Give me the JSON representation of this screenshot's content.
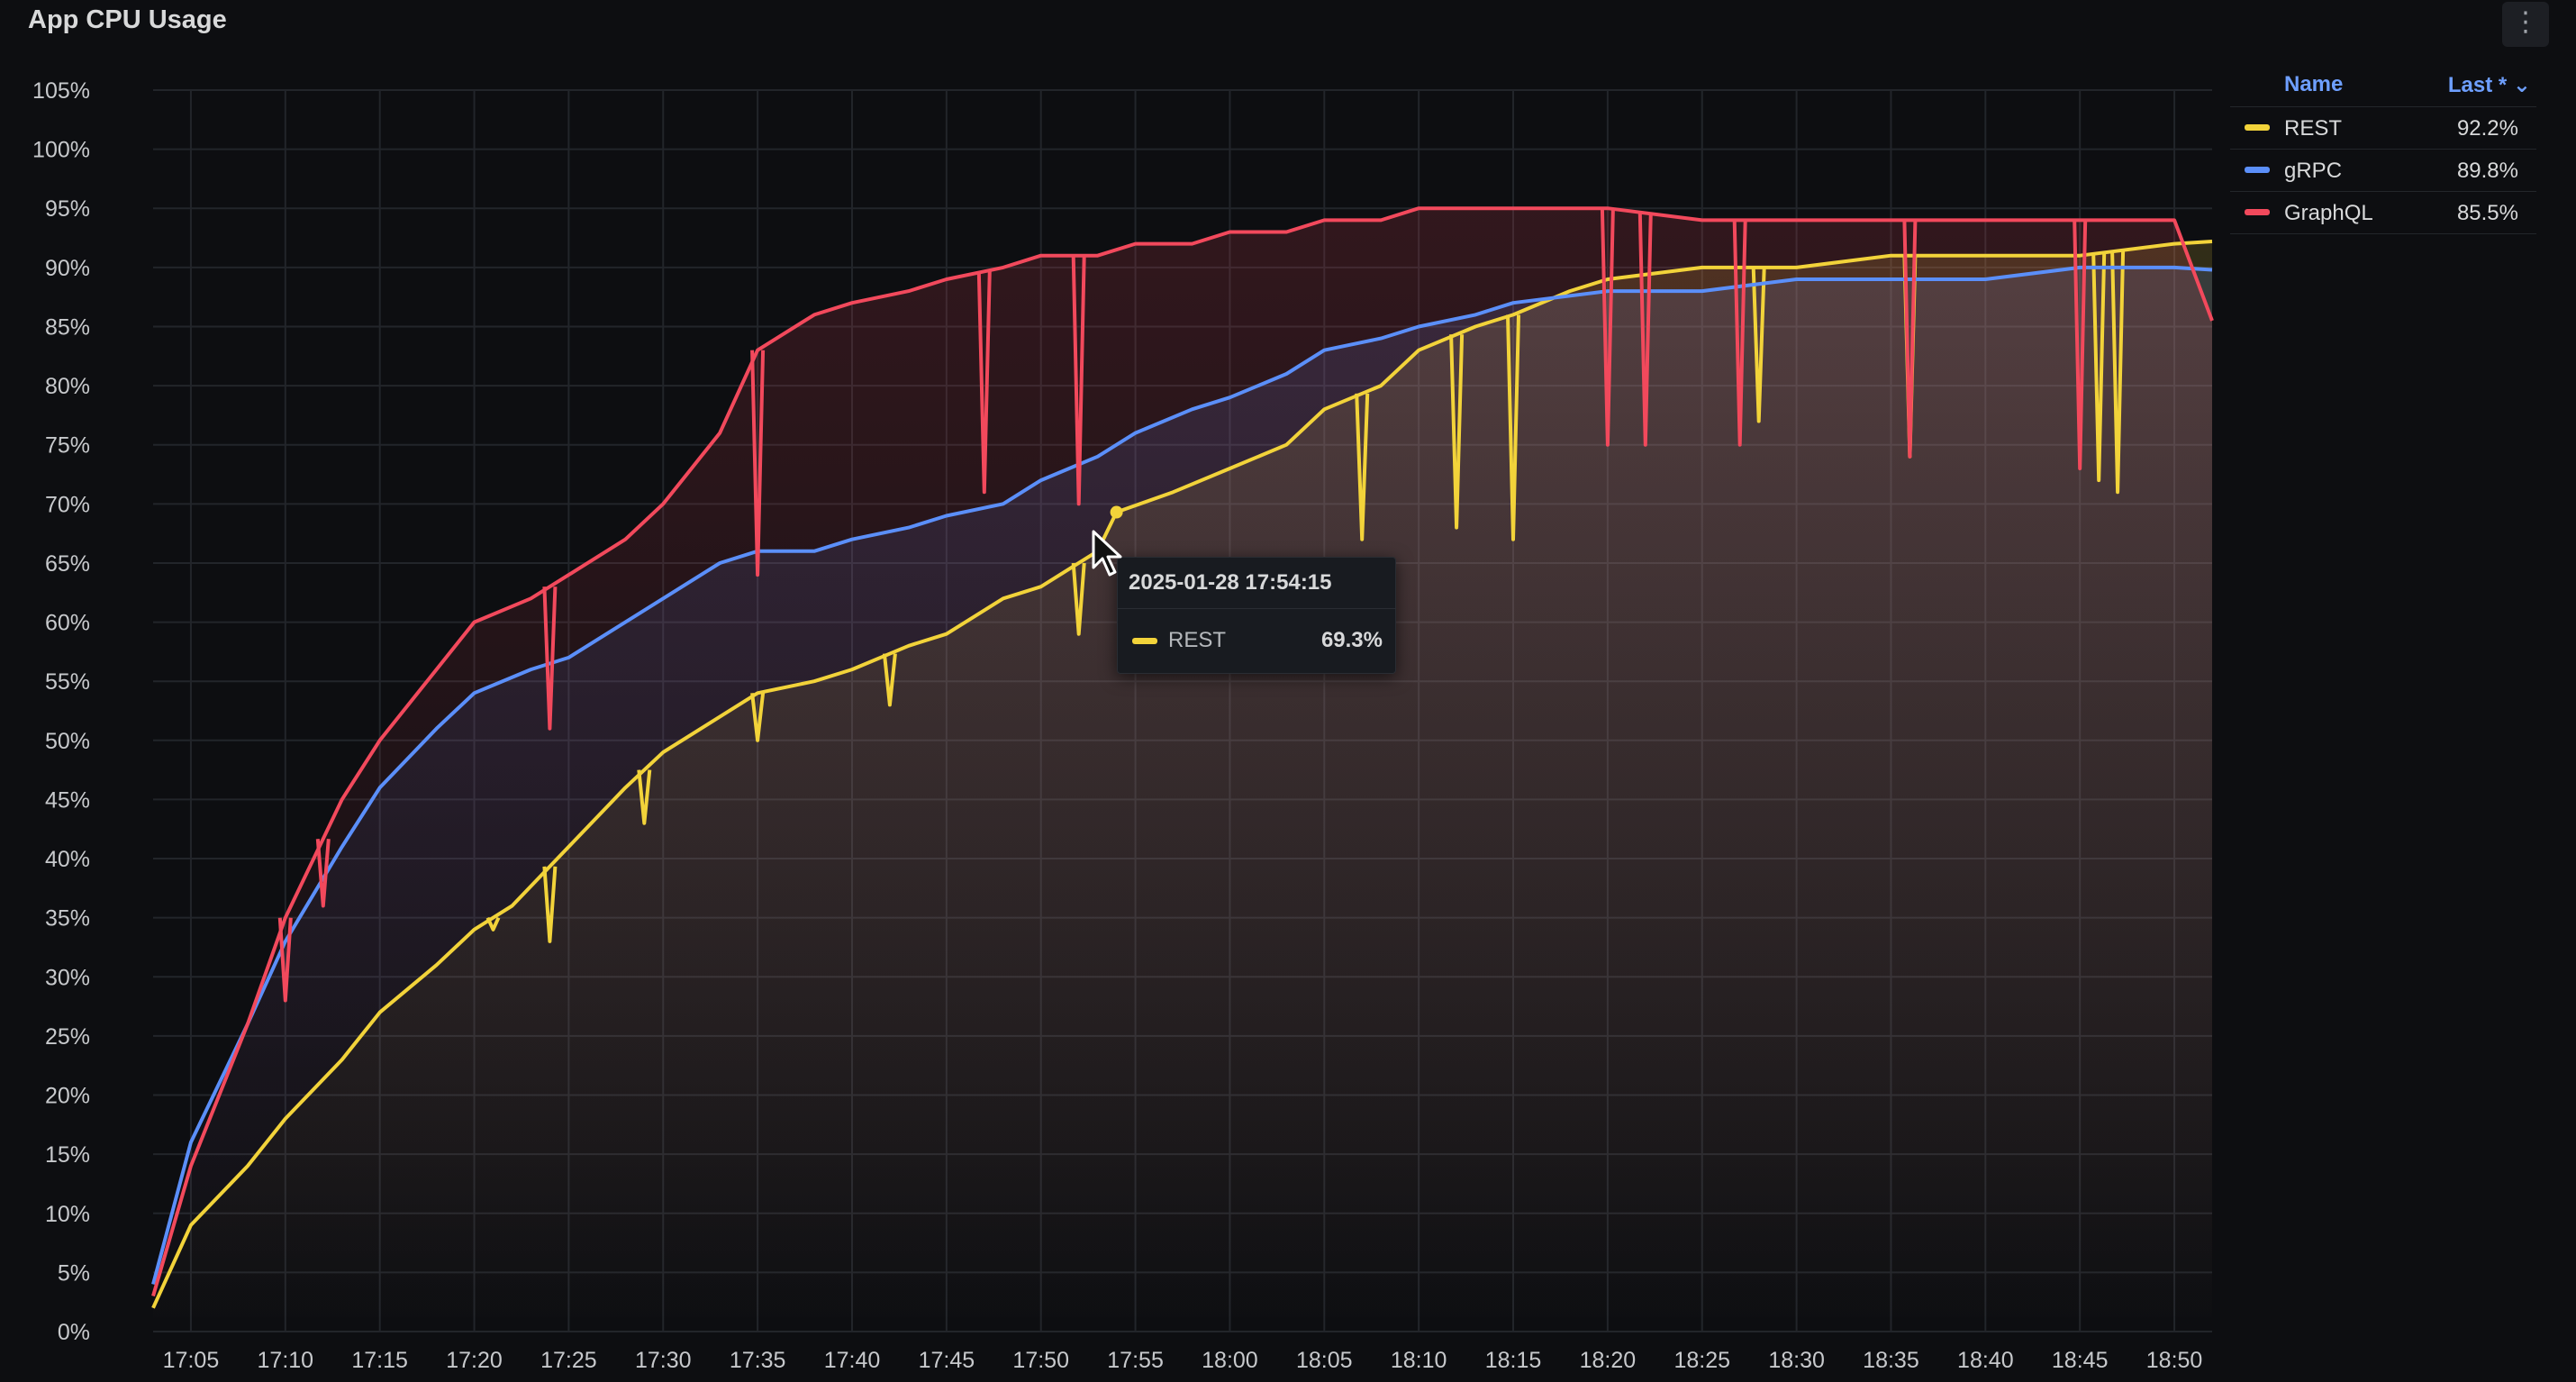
{
  "panel": {
    "title": "App CPU Usage",
    "menu_icon": "vertical-ellipsis-icon",
    "menu_glyph": "⋮"
  },
  "legend": {
    "header_name": "Name",
    "header_last": "Last * ⌄",
    "items": [
      {
        "name": "REST",
        "last": "92.2%",
        "color": "#f2d33a"
      },
      {
        "name": "gRPC",
        "last": "89.8%",
        "color": "#5b8ff9"
      },
      {
        "name": "GraphQL",
        "last": "85.5%",
        "color": "#f2495c"
      }
    ]
  },
  "tooltip": {
    "time": "2025-01-28 17:54:15",
    "series": "REST",
    "value": "69.3%",
    "color": "#f2d33a"
  },
  "chart_data": {
    "type": "line",
    "title": "App CPU Usage",
    "grid": true,
    "legend_placement": "right",
    "x_range": [
      "17:03",
      "18:52"
    ],
    "ylim": [
      0,
      105
    ],
    "y_ticks": [
      "0%",
      "5%",
      "10%",
      "15%",
      "20%",
      "25%",
      "30%",
      "35%",
      "40%",
      "45%",
      "50%",
      "55%",
      "60%",
      "65%",
      "70%",
      "75%",
      "80%",
      "85%",
      "90%",
      "95%",
      "100%",
      "105%"
    ],
    "x_ticks": [
      "17:05",
      "17:10",
      "17:15",
      "17:20",
      "17:25",
      "17:30",
      "17:35",
      "17:40",
      "17:45",
      "17:50",
      "17:55",
      "18:00",
      "18:05",
      "18:10",
      "18:15",
      "18:20",
      "18:25",
      "18:30",
      "18:35",
      "18:40",
      "18:45",
      "18:50"
    ],
    "series": [
      {
        "name": "REST",
        "color": "#f2d33a",
        "x": [
          "17:03",
          "17:05",
          "17:08",
          "17:10",
          "17:13",
          "17:15",
          "17:18",
          "17:20",
          "17:22",
          "17:25",
          "17:28",
          "17:30",
          "17:33",
          "17:35",
          "17:38",
          "17:40",
          "17:43",
          "17:45",
          "17:48",
          "17:50",
          "17:53",
          "17:54",
          "17:57",
          "18:00",
          "18:03",
          "18:05",
          "18:08",
          "18:10",
          "18:13",
          "18:15",
          "18:18",
          "18:20",
          "18:25",
          "18:30",
          "18:35",
          "18:40",
          "18:45",
          "18:50",
          "18:52"
        ],
        "values": [
          2,
          9,
          14,
          18,
          23,
          27,
          31,
          34,
          36,
          41,
          46,
          49,
          52,
          54,
          55,
          56,
          58,
          59,
          62,
          63,
          66,
          69.3,
          71,
          73,
          75,
          78,
          80,
          83,
          85,
          86,
          88,
          89,
          90,
          90,
          91,
          91,
          91,
          92,
          92.2
        ],
        "dips": [
          [
            "17:21",
            34
          ],
          [
            "17:24",
            33
          ],
          [
            "17:29",
            43
          ],
          [
            "17:35",
            50
          ],
          [
            "17:42",
            53
          ],
          [
            "17:52",
            59
          ],
          [
            "18:07",
            67
          ],
          [
            "18:12",
            68
          ],
          [
            "18:15",
            67
          ],
          [
            "18:28",
            77
          ],
          [
            "18:36",
            74
          ],
          [
            "18:46",
            72
          ],
          [
            "18:47",
            71
          ]
        ]
      },
      {
        "name": "gRPC",
        "color": "#5b8ff9",
        "x": [
          "17:03",
          "17:05",
          "17:08",
          "17:10",
          "17:13",
          "17:15",
          "17:18",
          "17:20",
          "17:23",
          "17:25",
          "17:28",
          "17:30",
          "17:33",
          "17:35",
          "17:38",
          "17:40",
          "17:43",
          "17:45",
          "17:48",
          "17:50",
          "17:53",
          "17:55",
          "17:58",
          "18:00",
          "18:03",
          "18:05",
          "18:08",
          "18:10",
          "18:13",
          "18:15",
          "18:20",
          "18:25",
          "18:30",
          "18:35",
          "18:40",
          "18:45",
          "18:50",
          "18:52"
        ],
        "values": [
          4,
          16,
          26,
          33,
          41,
          46,
          51,
          54,
          56,
          57,
          60,
          62,
          65,
          66,
          66,
          67,
          68,
          69,
          70,
          72,
          74,
          76,
          78,
          79,
          81,
          83,
          84,
          85,
          86,
          87,
          88,
          88,
          89,
          89,
          89,
          90,
          90,
          89.8
        ]
      },
      {
        "name": "GraphQL",
        "color": "#f2495c",
        "x": [
          "17:03",
          "17:05",
          "17:08",
          "17:10",
          "17:13",
          "17:15",
          "17:18",
          "17:20",
          "17:23",
          "17:25",
          "17:28",
          "17:30",
          "17:33",
          "17:35",
          "17:38",
          "17:40",
          "17:43",
          "17:45",
          "17:48",
          "17:50",
          "17:53",
          "17:55",
          "17:58",
          "18:00",
          "18:03",
          "18:05",
          "18:08",
          "18:10",
          "18:13",
          "18:15",
          "18:20",
          "18:25",
          "18:30",
          "18:35",
          "18:40",
          "18:45",
          "18:50",
          "18:52"
        ],
        "values": [
          3,
          14,
          26,
          35,
          45,
          50,
          56,
          60,
          62,
          64,
          67,
          70,
          76,
          83,
          86,
          87,
          88,
          89,
          90,
          91,
          91,
          92,
          92,
          93,
          93,
          94,
          94,
          95,
          95,
          95,
          95,
          94,
          94,
          94,
          94,
          94,
          94,
          85.5
        ],
        "dips": [
          [
            "17:10",
            28
          ],
          [
            "17:12",
            36
          ],
          [
            "17:24",
            51
          ],
          [
            "17:35",
            64
          ],
          [
            "17:47",
            71
          ],
          [
            "17:52",
            70
          ],
          [
            "18:20",
            75
          ],
          [
            "18:22",
            75
          ],
          [
            "18:27",
            75
          ],
          [
            "18:36",
            74
          ],
          [
            "18:45",
            73
          ]
        ]
      }
    ]
  }
}
